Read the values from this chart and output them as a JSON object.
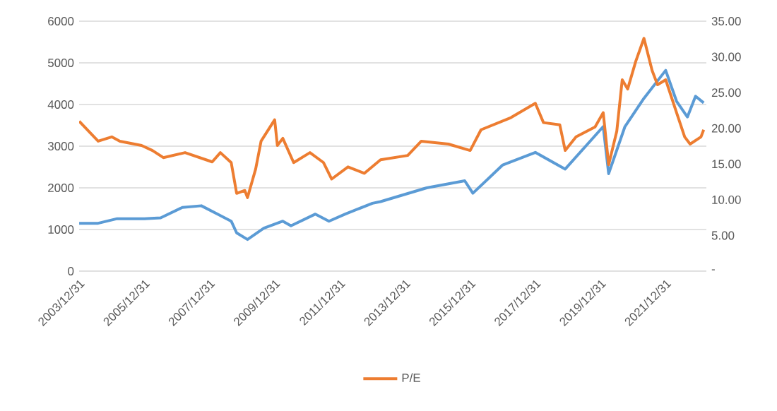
{
  "chart_data": {
    "type": "line",
    "xlim": [
      "2003-12-31",
      "2023-03-31"
    ],
    "xticks": [
      {
        "value": "2003-12-31",
        "label": "2003/12/31"
      },
      {
        "value": "2005-12-31",
        "label": "2005/12/31"
      },
      {
        "value": "2007-12-31",
        "label": "2007/12/31"
      },
      {
        "value": "2009-12-31",
        "label": "2009/12/31"
      },
      {
        "value": "2011-12-31",
        "label": "2011/12/31"
      },
      {
        "value": "2013-12-31",
        "label": "2013/12/31"
      },
      {
        "value": "2015-12-31",
        "label": "2015/12/31"
      },
      {
        "value": "2017-12-31",
        "label": "2017/12/31"
      },
      {
        "value": "2019-12-31",
        "label": "2019/12/31"
      },
      {
        "value": "2021-12-31",
        "label": "2021/12/31"
      }
    ],
    "ylim": [
      0,
      6000
    ],
    "yticks": [
      0,
      1000,
      2000,
      3000,
      4000,
      5000,
      6000
    ],
    "y2lim": [
      0,
      35
    ],
    "y2ticks": [
      {
        "value": 0,
        "label": "-"
      },
      {
        "value": 5,
        "label": "5.00"
      },
      {
        "value": 10,
        "label": "10.00"
      },
      {
        "value": 15,
        "label": "15.00"
      },
      {
        "value": 20,
        "label": "20.00"
      },
      {
        "value": 25,
        "label": "25.00"
      },
      {
        "value": 30,
        "label": "30.00"
      },
      {
        "value": 35,
        "label": "35.00"
      }
    ],
    "grid": "y",
    "legend": "bottom",
    "marker": "none",
    "line_style": "solid",
    "series": [
      {
        "color": "#5b9bd5",
        "x": [
          "2004-01",
          "2004-08",
          "2005-03",
          "2006-01",
          "2006-07",
          "2007-03",
          "2007-10",
          "2008-04",
          "2008-09",
          "2008-11",
          "2009-03",
          "2009-09",
          "2010-04",
          "2010-07",
          "2011-04",
          "2011-09",
          "2012-03",
          "2013-01",
          "2013-04",
          "2014-09",
          "2015-11",
          "2016-02",
          "2017-01",
          "2018-01",
          "2018-12",
          "2020-02",
          "2020-04",
          "2020-10",
          "2021-05",
          "2022-01",
          "2022-05",
          "2022-09",
          "2022-12",
          "2023-03"
        ],
        "values": [
          1150,
          1150,
          1260,
          1260,
          1280,
          1530,
          1570,
          1370,
          1200,
          920,
          760,
          1030,
          1200,
          1090,
          1370,
          1200,
          1370,
          1630,
          1670,
          2000,
          2170,
          1870,
          2550,
          2850,
          2450,
          3470,
          2340,
          3470,
          4150,
          4820,
          4080,
          3700,
          4200,
          4040
        ]
      },
      {
        "name": "P/E",
        "color": "#ed7d31",
        "axis": "y2",
        "x": [
          "2004-01",
          "2004-08",
          "2005-01",
          "2005-04",
          "2005-12",
          "2006-04",
          "2006-08",
          "2007-04",
          "2008-02",
          "2008-05",
          "2008-09",
          "2008-11",
          "2009-02",
          "2009-03",
          "2009-06",
          "2009-08",
          "2010-01",
          "2010-02",
          "2010-04",
          "2010-08",
          "2011-02",
          "2011-07",
          "2011-10",
          "2012-04",
          "2012-10",
          "2013-04",
          "2014-02",
          "2014-07",
          "2015-05",
          "2016-01",
          "2016-05",
          "2017-04",
          "2018-01",
          "2018-04",
          "2018-10",
          "2018-12",
          "2019-04",
          "2019-11",
          "2020-02",
          "2020-04",
          "2020-07",
          "2020-09",
          "2020-11",
          "2021-02",
          "2021-05",
          "2021-08",
          "2021-10",
          "2022-01",
          "2022-05",
          "2022-08",
          "2022-10",
          "2023-02",
          "2023-03"
        ],
        "values": [
          21.0,
          18.2,
          18.8,
          18.2,
          17.6,
          16.9,
          15.9,
          16.6,
          15.3,
          16.6,
          15.2,
          10.9,
          11.3,
          10.3,
          14.3,
          18.2,
          21.2,
          17.6,
          18.6,
          15.2,
          16.6,
          15.2,
          12.9,
          14.6,
          13.7,
          15.6,
          16.2,
          18.2,
          17.8,
          16.9,
          19.8,
          21.5,
          23.5,
          20.8,
          20.5,
          16.9,
          18.8,
          20.2,
          22.2,
          14.9,
          19.6,
          26.8,
          25.5,
          29.4,
          32.6,
          28.1,
          26.1,
          26.8,
          22.2,
          18.8,
          17.8,
          18.8,
          19.8
        ]
      }
    ]
  }
}
